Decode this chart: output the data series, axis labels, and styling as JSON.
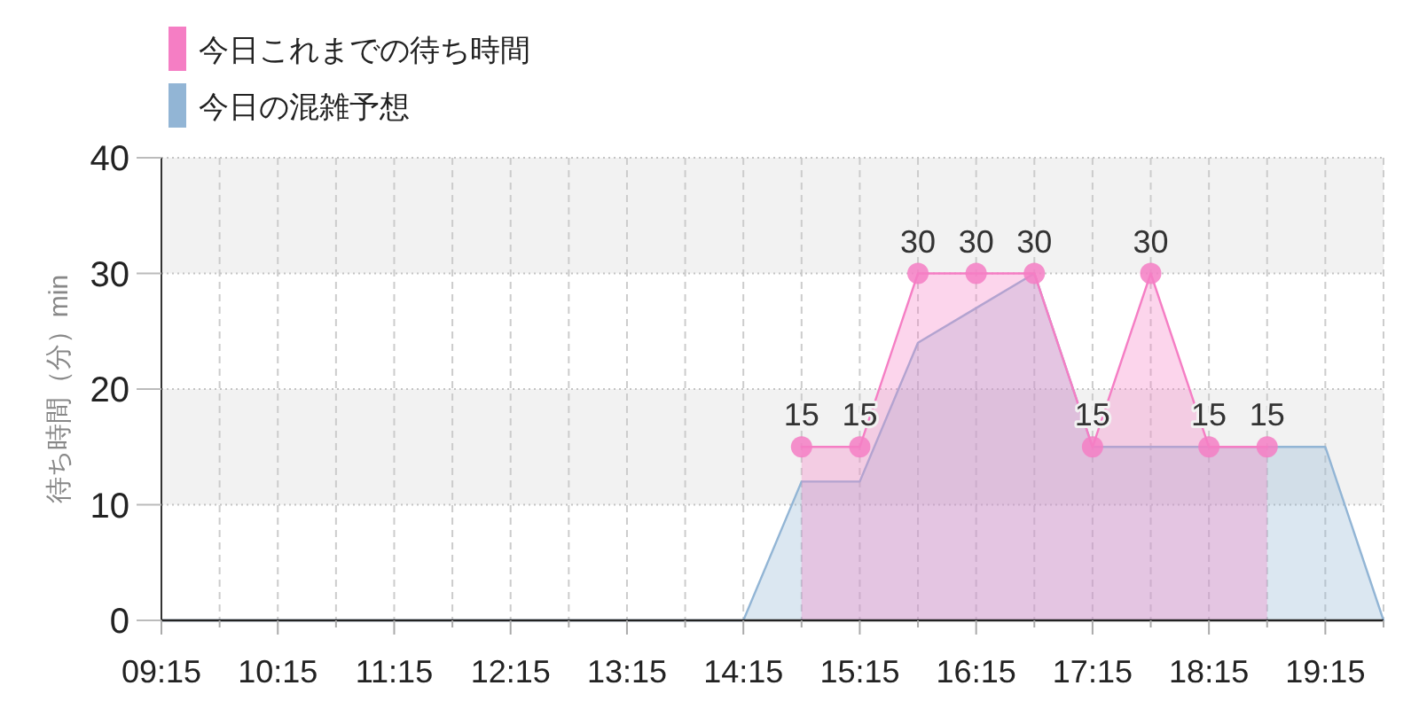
{
  "chart_data": {
    "type": "area",
    "ylabel": "待ち時間（分）min",
    "xlim": [
      9.25,
      19.75
    ],
    "xticks": [
      {
        "value": 9.25,
        "label": "09:15"
      },
      {
        "value": 9.75,
        "label": null
      },
      {
        "value": 10.25,
        "label": "10:15"
      },
      {
        "value": 10.75,
        "label": null
      },
      {
        "value": 11.25,
        "label": "11:15"
      },
      {
        "value": 11.75,
        "label": null
      },
      {
        "value": 12.25,
        "label": "12:15"
      },
      {
        "value": 12.75,
        "label": null
      },
      {
        "value": 13.25,
        "label": "13:15"
      },
      {
        "value": 13.75,
        "label": null
      },
      {
        "value": 14.25,
        "label": "14:15"
      },
      {
        "value": 14.75,
        "label": null
      },
      {
        "value": 15.25,
        "label": "15:15"
      },
      {
        "value": 15.75,
        "label": null
      },
      {
        "value": 16.25,
        "label": "16:15"
      },
      {
        "value": 16.75,
        "label": null
      },
      {
        "value": 17.25,
        "label": "17:15"
      },
      {
        "value": 17.75,
        "label": null
      },
      {
        "value": 18.25,
        "label": "18:15"
      },
      {
        "value": 18.75,
        "label": null
      },
      {
        "value": 19.25,
        "label": "19:15"
      },
      {
        "value": 19.75,
        "label": null
      }
    ],
    "ylim": [
      0,
      40
    ],
    "yticks": [
      0,
      10,
      20,
      30,
      40
    ],
    "grid": true,
    "legend": "top left",
    "bands": [
      {
        "axis": "y",
        "from": 10,
        "to": 20,
        "color": "#f2f2f2"
      },
      {
        "axis": "y",
        "from": 30,
        "to": 40,
        "color": "#f2f2f2"
      }
    ],
    "series": [
      {
        "name": "今日これまでの待ち時間",
        "color": "#f57ec4",
        "marker": "circle",
        "x": [
          14.75,
          15.25,
          15.75,
          16.25,
          16.75,
          17.25,
          17.75,
          18.25,
          18.75
        ],
        "values": [
          15,
          15,
          30,
          30,
          30,
          15,
          30,
          15,
          15
        ],
        "value_labels": [
          "15",
          "15",
          "30",
          "30",
          "30",
          "15",
          "30",
          "15",
          "15"
        ]
      },
      {
        "name": "今日の混雑予想",
        "color": "#92b5d5",
        "x": [
          9.25,
          9.75,
          10.25,
          10.75,
          11.25,
          11.75,
          12.25,
          12.75,
          13.25,
          13.75,
          14.25,
          14.75,
          15.25,
          15.75,
          16.25,
          16.75,
          17.25,
          17.75,
          18.25,
          18.75,
          19.25,
          19.75
        ],
        "values": [
          0,
          0,
          0,
          0,
          0,
          0,
          0,
          0,
          0,
          0,
          0,
          12,
          12,
          24,
          27,
          30,
          15,
          15,
          15,
          15,
          15,
          0
        ]
      }
    ]
  }
}
